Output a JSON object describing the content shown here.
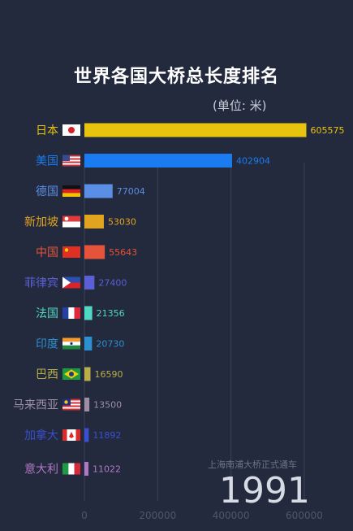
{
  "chart_data": {
    "type": "bar",
    "title": "世界各国大桥总长度排名",
    "unit_label": "(单位: 米)",
    "categories": [
      "日本",
      "美国",
      "德国",
      "新加坡",
      "中国",
      "菲律宾",
      "法国",
      "印度",
      "巴西",
      "马来西亚",
      "加拿大",
      "意大利"
    ],
    "values": [
      605575,
      402904,
      77004,
      53030,
      55643,
      27400,
      21356,
      20730,
      16590,
      13500,
      11892,
      11022
    ],
    "value_labels": [
      "605575",
      "402904",
      "77004",
      "53030",
      "55643",
      "27400",
      "21356",
      "20730",
      "16590",
      "13500",
      "11892",
      "11022"
    ],
    "colors": [
      "#e8c40f",
      "#1a7cf0",
      "#5b8fe6",
      "#e2a41e",
      "#e5533a",
      "#5a5fd6",
      "#52d7c4",
      "#2c8fcf",
      "#b9ae48",
      "#9d8ea6",
      "#3a4fd1",
      "#b078c4"
    ],
    "xlim": [
      0,
      620000
    ],
    "x_ticks": [
      "0",
      "200000",
      "400000",
      "600000"
    ],
    "x_tick_values": [
      0,
      200000,
      400000,
      600000
    ],
    "grid": true,
    "flag_icons": [
      "japan-flag-icon",
      "usa-flag-icon",
      "germany-flag-icon",
      "singapore-flag-icon",
      "china-flag-icon",
      "philippines-flag-icon",
      "france-flag-icon",
      "india-flag-icon",
      "brazil-flag-icon",
      "malaysia-flag-icon",
      "canada-flag-icon",
      "italy-flag-icon"
    ]
  },
  "annotation": "上海南浦大桥正式通车",
  "year": "1991"
}
